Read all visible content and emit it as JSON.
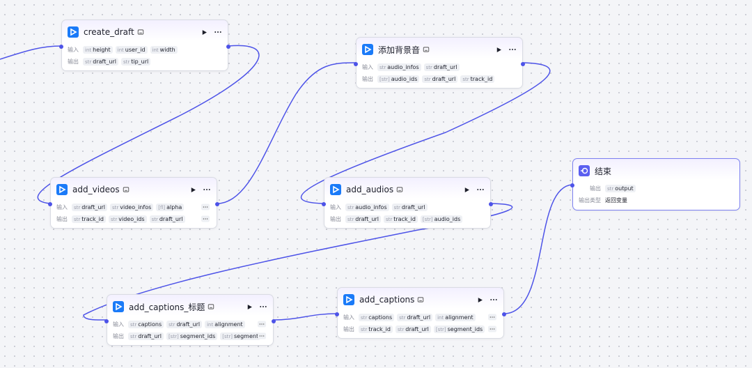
{
  "nodes": [
    {
      "title": "create_draft",
      "rows": [
        {
          "label": "输入",
          "params": [
            {
              "type": "int",
              "name": "height"
            },
            {
              "type": "int",
              "name": "user_id"
            },
            {
              "type": "int",
              "name": "width"
            }
          ]
        },
        {
          "label": "输出",
          "params": [
            {
              "type": "str",
              "name": "draft_url"
            },
            {
              "type": "str",
              "name": "tip_url"
            }
          ]
        }
      ]
    },
    {
      "title": "添加背景音",
      "rows": [
        {
          "label": "输入",
          "params": [
            {
              "type": "str",
              "name": "audio_infos"
            },
            {
              "type": "str",
              "name": "draft_url"
            }
          ]
        },
        {
          "label": "输出",
          "params": [
            {
              "type": "[str]",
              "name": "audio_ids"
            },
            {
              "type": "str",
              "name": "draft_url"
            },
            {
              "type": "str",
              "name": "track_id"
            }
          ]
        }
      ]
    },
    {
      "title": "add_videos",
      "rows": [
        {
          "label": "输入",
          "params": [
            {
              "type": "str",
              "name": "draft_url"
            },
            {
              "type": "str",
              "name": "video_infos"
            },
            {
              "type": "[fl]",
              "name": "alpha"
            }
          ]
        },
        {
          "label": "输出",
          "params": [
            {
              "type": "str",
              "name": "track_id"
            },
            {
              "type": "str",
              "name": "video_ids"
            },
            {
              "type": "str",
              "name": "draft_url"
            }
          ]
        }
      ]
    },
    {
      "title": "add_audios",
      "rows": [
        {
          "label": "输入",
          "params": [
            {
              "type": "str",
              "name": "audio_infos"
            },
            {
              "type": "str",
              "name": "draft_url"
            }
          ]
        },
        {
          "label": "输出",
          "params": [
            {
              "type": "str",
              "name": "draft_url"
            },
            {
              "type": "str",
              "name": "track_id"
            },
            {
              "type": "[str]",
              "name": "audio_ids"
            }
          ]
        }
      ]
    },
    {
      "title": "结束",
      "rows": [
        {
          "label": "输出",
          "params": [
            {
              "type": "str",
              "name": "output"
            }
          ]
        },
        {
          "label": "输出类型",
          "text": "返回变量"
        }
      ]
    },
    {
      "title": "add_captions_标题",
      "rows": [
        {
          "label": "输入",
          "params": [
            {
              "type": "str",
              "name": "captions"
            },
            {
              "type": "str",
              "name": "draft_url"
            },
            {
              "type": "int",
              "name": "alignment"
            }
          ]
        },
        {
          "label": "输出",
          "params": [
            {
              "type": "str",
              "name": "draft_url"
            },
            {
              "type": "[str]",
              "name": "segment_ids"
            },
            {
              "type": "[str]",
              "name": "segment"
            }
          ]
        }
      ]
    },
    {
      "title": "add_captions",
      "rows": [
        {
          "label": "输入",
          "params": [
            {
              "type": "str",
              "name": "captions"
            },
            {
              "type": "str",
              "name": "draft_url"
            },
            {
              "type": "int",
              "name": "alignment"
            }
          ]
        },
        {
          "label": "输出",
          "params": [
            {
              "type": "str",
              "name": "track_id"
            },
            {
              "type": "str",
              "name": "draft_url"
            },
            {
              "type": "[str]",
              "name": "segment_ids"
            }
          ]
        }
      ]
    }
  ]
}
